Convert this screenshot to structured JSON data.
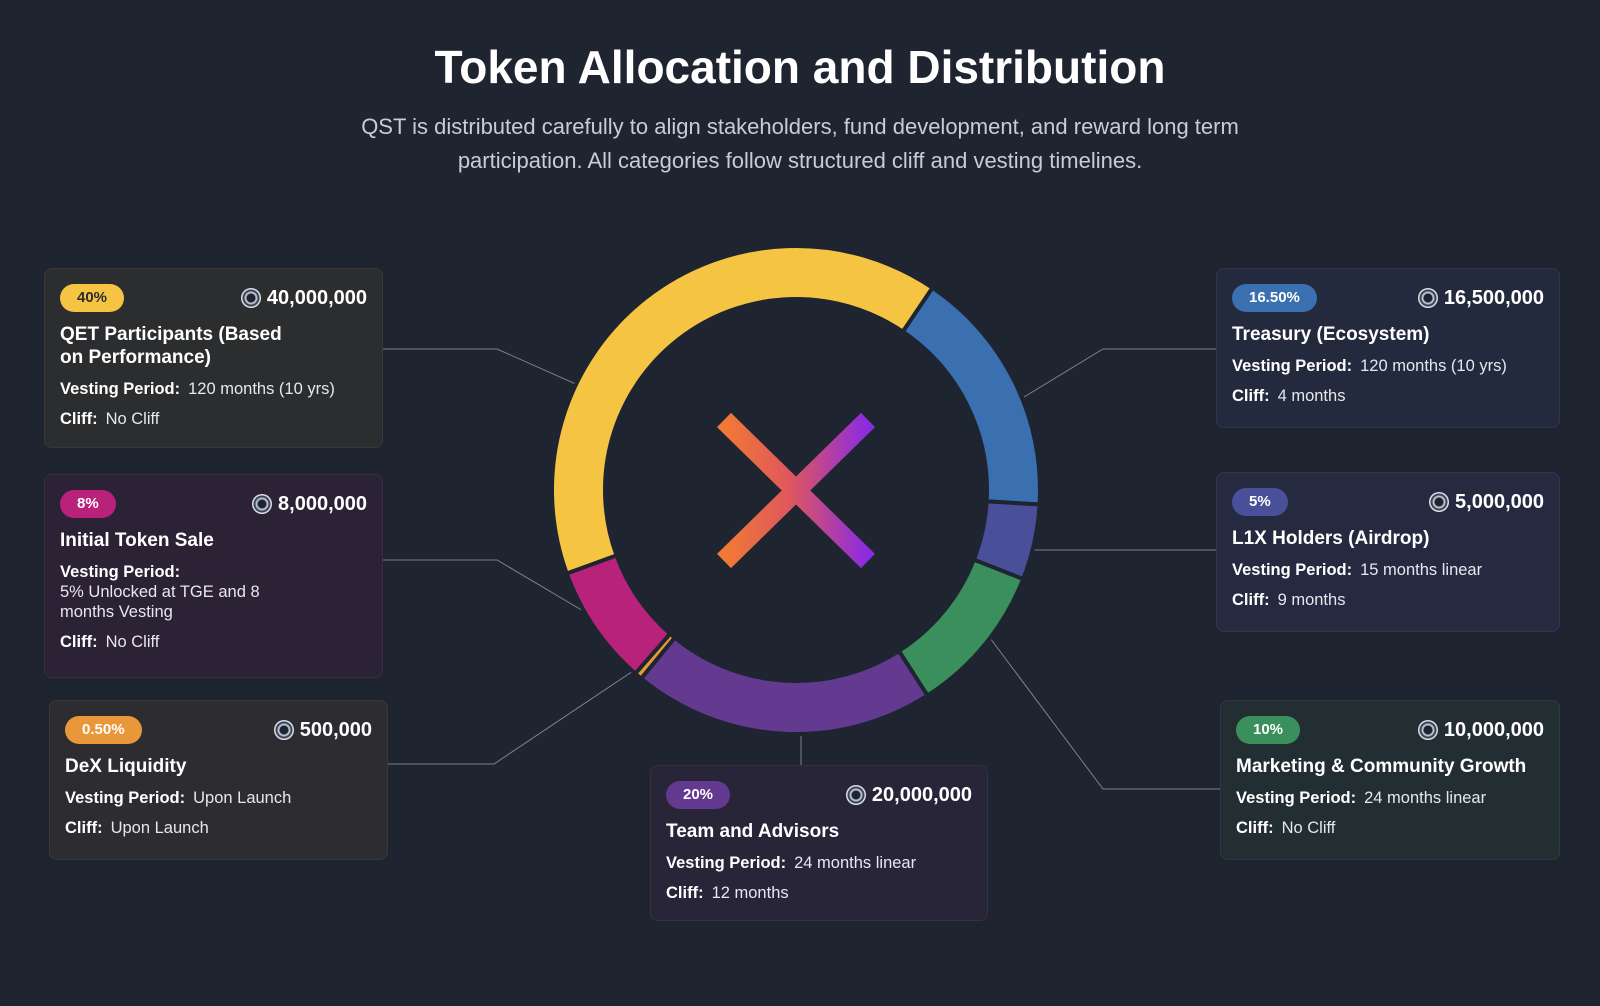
{
  "header": {
    "title": "Token Allocation and Distribution",
    "subtitle": "QST is distributed carefully to align stakeholders, fund development, and reward long term participation. All categories follow structured cliff and vesting timelines."
  },
  "labels": {
    "vesting": "Vesting Period:",
    "cliff": "Cliff:"
  },
  "chart_data": {
    "type": "pie",
    "variant": "donut",
    "title": "",
    "slices": [
      {
        "name": "Treasury (Ecosystem)",
        "percent_label": "16.50%",
        "value": 16.5,
        "amount": "16,500,000",
        "vesting": "120 months (10 yrs)",
        "cliff": "4 months",
        "color": "#3a6fb0"
      },
      {
        "name": "L1X Holders (Airdrop)",
        "percent_label": "5%",
        "value": 5,
        "amount": "5,000,000",
        "vesting": "15 months linear",
        "cliff": "9 months",
        "color": "#4a4f9a"
      },
      {
        "name": "Marketing & Community Growth",
        "percent_label": "10%",
        "value": 10,
        "amount": "10,000,000",
        "vesting": "24 months linear",
        "cliff": "No Cliff",
        "color": "#3a8f5c"
      },
      {
        "name": "Team and Advisors",
        "percent_label": "20%",
        "value": 20,
        "amount": "20,000,000",
        "vesting": "24 months linear",
        "cliff": "12 months",
        "color": "#633a8f"
      },
      {
        "name": "DeX Liquidity",
        "percent_label": "0.50%",
        "value": 0.5,
        "amount": "500,000",
        "vesting": "Upon Launch",
        "cliff": "Upon Launch",
        "color": "#e8983a"
      },
      {
        "name": "Initial Token Sale",
        "percent_label": "8%",
        "value": 8,
        "amount": "8,000,000",
        "vesting": "5% Unlocked at TGE and 8 months Vesting",
        "cliff": "No Cliff",
        "color": "#b8227a"
      },
      {
        "name": "QET Participants (Based on Performance)",
        "percent_label": "40%",
        "value": 40,
        "amount": "40,000,000",
        "vesting": "120 months (10 yrs)",
        "cliff": "No Cliff",
        "color": "#f5c443"
      }
    ],
    "legend": "cards around chart"
  },
  "colors": {
    "background": "#1f2431",
    "badge_qet": "#f5c443",
    "badge_sale": "#b8227a",
    "badge_dex": "#e8983a",
    "badge_team": "#633a8f",
    "badge_treasury": "#3a6fb0",
    "badge_l1x": "#4a4f9a",
    "badge_marketing": "#3a8f5c"
  },
  "icons": {
    "center_logo": "asterisk-logo-icon",
    "coin": "token-coin-icon"
  }
}
